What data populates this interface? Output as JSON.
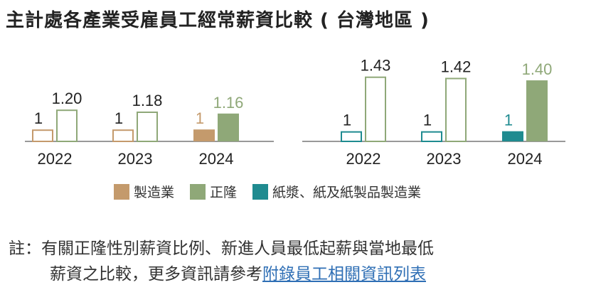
{
  "title": "主計處各產業受雇員工經常薪資比較 ( 台灣地區 )",
  "colors": {
    "manufacturing": "#c49a6c",
    "chenglong": "#8fa878",
    "paper": "#1f8b90",
    "label": "#222222",
    "axis": "#999999"
  },
  "chart_data": [
    {
      "type": "bar",
      "categories": [
        "2022",
        "2023",
        "2024"
      ],
      "ylim": [
        0.88,
        1.6
      ],
      "series": [
        {
          "name": "製造業",
          "values": [
            1,
            1,
            1
          ],
          "labels": [
            "1",
            "1",
            "1"
          ],
          "colorKey": "manufacturing"
        },
        {
          "name": "正隆",
          "values": [
            1.2,
            1.18,
            1.16
          ],
          "labels": [
            "1.20",
            "1.18",
            "1.16"
          ],
          "colorKey": "chenglong"
        }
      ],
      "filled_category": "2024"
    },
    {
      "type": "bar",
      "categories": [
        "2022",
        "2023",
        "2024"
      ],
      "ylim": [
        0.92,
        1.6
      ],
      "series": [
        {
          "name": "紙漿、紙及紙製品製造業",
          "values": [
            1,
            1,
            1
          ],
          "labels": [
            "1",
            "1",
            "1"
          ],
          "colorKey": "paper"
        },
        {
          "name": "正隆",
          "values": [
            1.43,
            1.42,
            1.4
          ],
          "labels": [
            "1.43",
            "1.42",
            "1.40"
          ],
          "colorKey": "chenglong"
        }
      ],
      "filled_category": "2024"
    }
  ],
  "legend": [
    {
      "label": "製造業",
      "colorKey": "manufacturing"
    },
    {
      "label": "正隆",
      "colorKey": "chenglong"
    },
    {
      "label": "紙漿、紙及紙製品製造業",
      "colorKey": "paper"
    }
  ],
  "note": {
    "line1": "註：有關正隆性別薪資比例、新進人員最低起薪與當地最低",
    "line2_text": "薪資之比較，更多資訊請參考",
    "link": "附錄員工相關資訊列表"
  }
}
